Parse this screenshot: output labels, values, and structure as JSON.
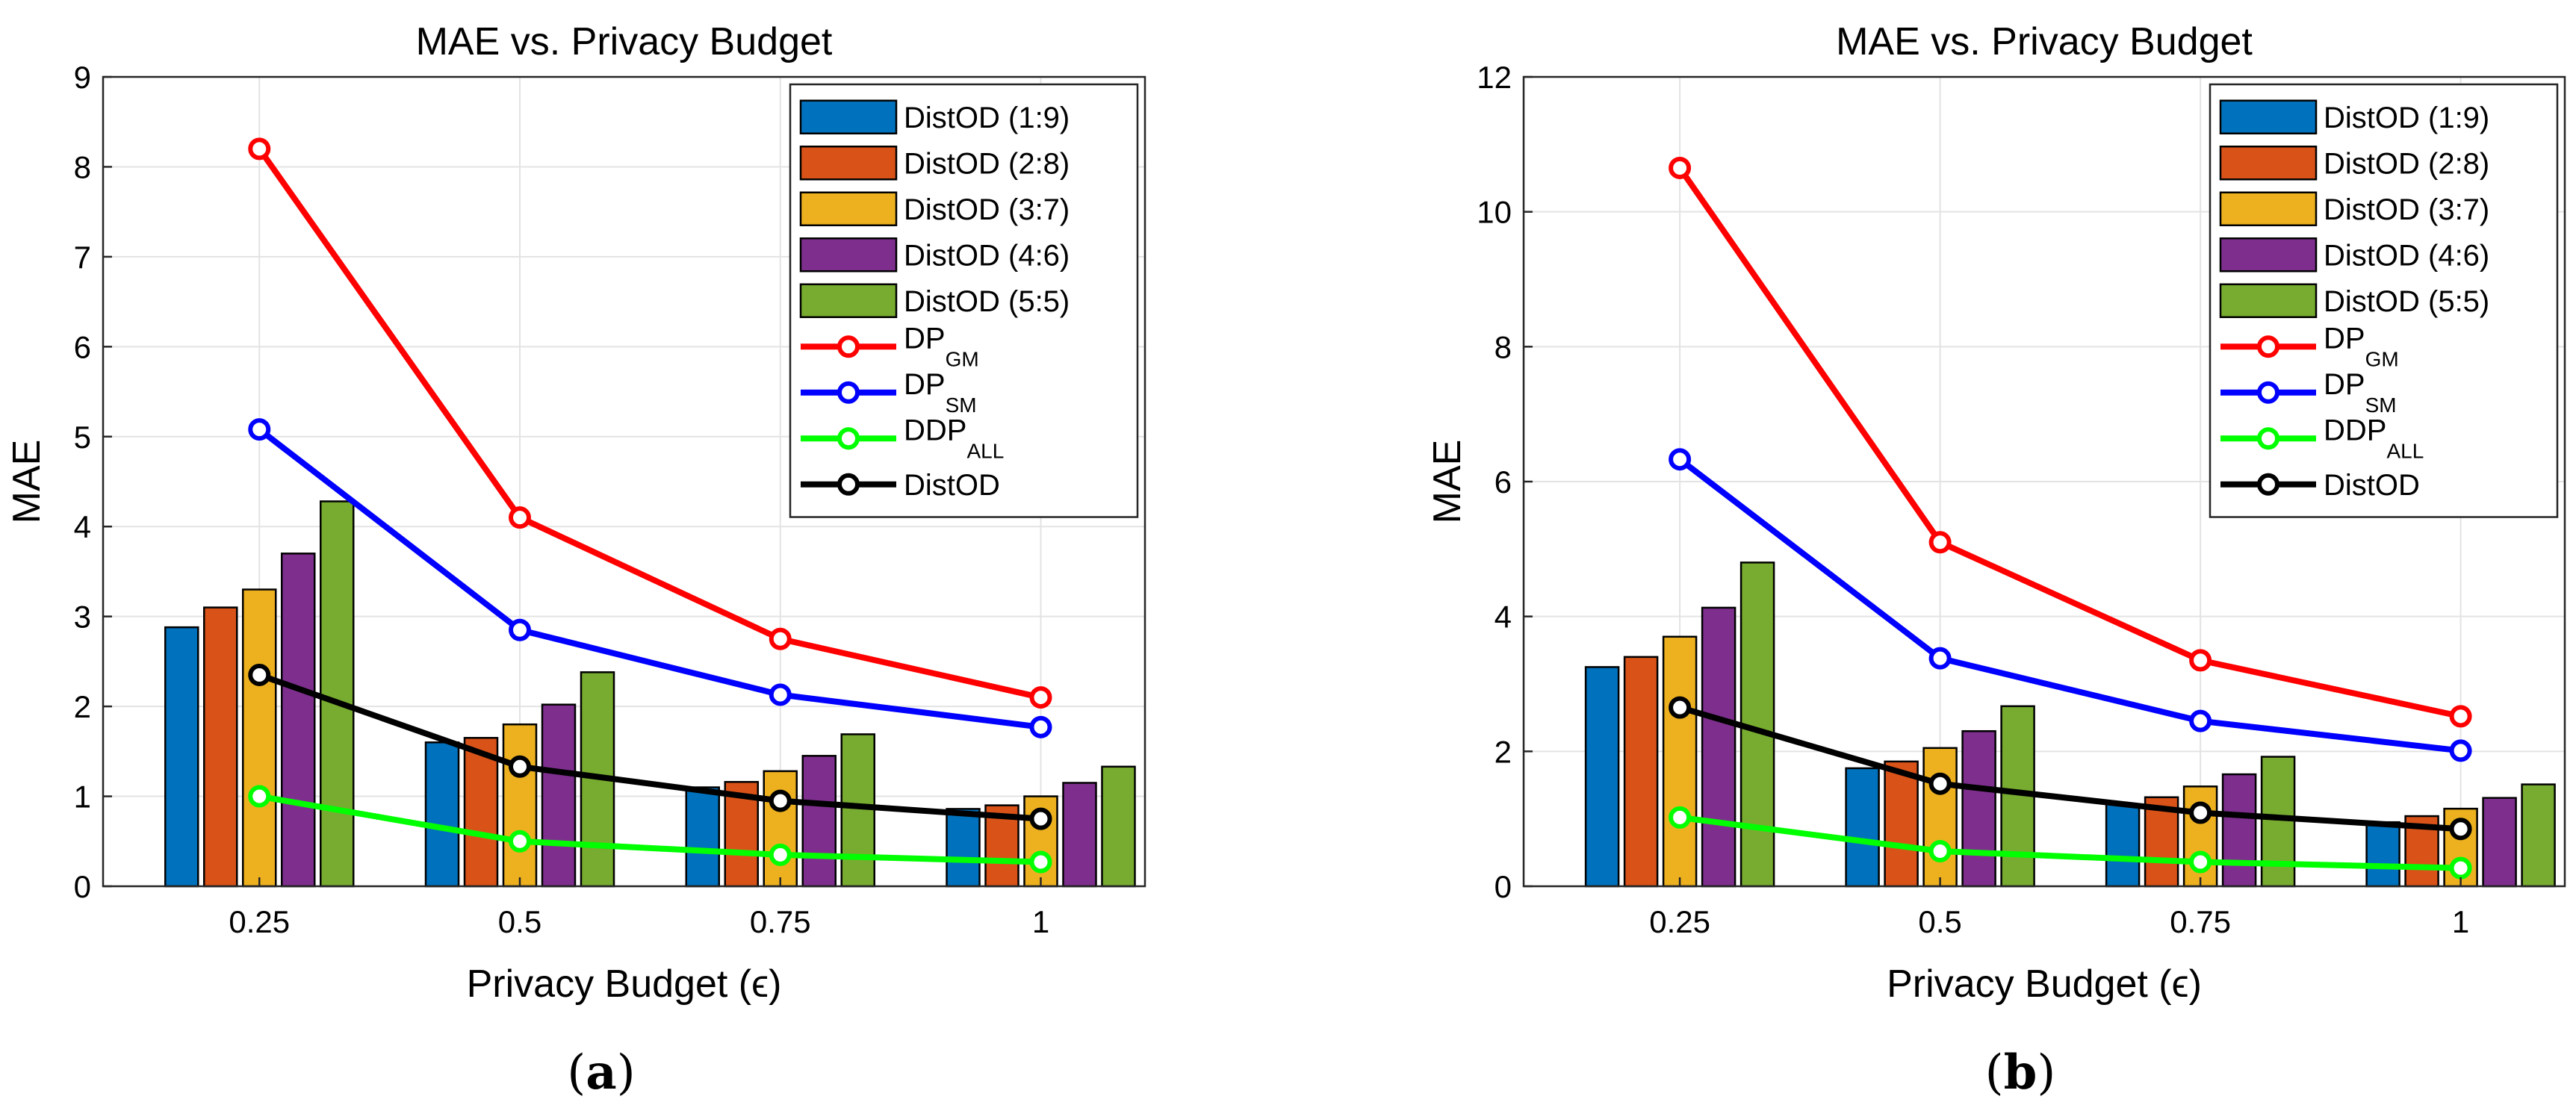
{
  "chart_data": [
    {
      "type": "bar",
      "title": "MAE vs. Privacy Budget",
      "xlabel": "Privacy Budget (ϵ)",
      "ylabel": "MAE",
      "caption_letter": "a",
      "categories": [
        "0.25",
        "0.5",
        "0.75",
        "1"
      ],
      "x": [
        0.25,
        0.5,
        0.75,
        1
      ],
      "xlim": [
        0.1,
        1.1
      ],
      "ylim": [
        0,
        9
      ],
      "yticks": [
        "0",
        "1",
        "2",
        "3",
        "4",
        "5",
        "6",
        "7",
        "8",
        "9"
      ],
      "grid": true,
      "legend_position": "top-right",
      "bar_series": [
        {
          "name": "DistOD (1:9)",
          "color": "#0072BD",
          "values": [
            2.88,
            1.6,
            1.1,
            0.86
          ]
        },
        {
          "name": "DistOD (2:8)",
          "color": "#D95319",
          "values": [
            3.1,
            1.65,
            1.16,
            0.9
          ]
        },
        {
          "name": "DistOD (3:7)",
          "color": "#EDB120",
          "values": [
            3.3,
            1.8,
            1.28,
            1.0
          ]
        },
        {
          "name": "DistOD (4:6)",
          "color": "#7E2F8E",
          "values": [
            3.7,
            2.02,
            1.45,
            1.15
          ]
        },
        {
          "name": "DistOD (5:5)",
          "color": "#77AC30",
          "values": [
            4.28,
            2.38,
            1.69,
            1.33
          ]
        }
      ],
      "line_series": [
        {
          "name": "DP",
          "subscript": "GM",
          "color": "#FF0000",
          "values": [
            8.2,
            4.1,
            2.75,
            2.1
          ]
        },
        {
          "name": "DP",
          "subscript": "SM",
          "color": "#0000FF",
          "values": [
            5.08,
            2.85,
            2.13,
            1.77
          ]
        },
        {
          "name": "DDP",
          "subscript": "ALL",
          "color": "#00FF00",
          "values": [
            1.0,
            0.5,
            0.35,
            0.27
          ]
        },
        {
          "name": "DistOD",
          "subscript": "",
          "color": "#000000",
          "values": [
            2.35,
            1.33,
            0.95,
            0.75
          ]
        }
      ]
    },
    {
      "type": "bar",
      "title": "MAE vs. Privacy Budget",
      "xlabel": "Privacy Budget (ϵ)",
      "ylabel": "MAE",
      "caption_letter": "b",
      "categories": [
        "0.25",
        "0.5",
        "0.75",
        "1"
      ],
      "x": [
        0.25,
        0.5,
        0.75,
        1
      ],
      "xlim": [
        0.1,
        1.1
      ],
      "ylim": [
        0,
        12
      ],
      "yticks": [
        "0",
        "2",
        "4",
        "6",
        "8",
        "10",
        "12"
      ],
      "grid": true,
      "legend_position": "top-right",
      "bar_series": [
        {
          "name": "DistOD (1:9)",
          "color": "#0072BD",
          "values": [
            3.25,
            1.75,
            1.22,
            0.95
          ]
        },
        {
          "name": "DistOD (2:8)",
          "color": "#D95319",
          "values": [
            3.4,
            1.85,
            1.32,
            1.04
          ]
        },
        {
          "name": "DistOD (3:7)",
          "color": "#EDB120",
          "values": [
            3.7,
            2.05,
            1.48,
            1.15
          ]
        },
        {
          "name": "DistOD (4:6)",
          "color": "#7E2F8E",
          "values": [
            4.13,
            2.3,
            1.66,
            1.31
          ]
        },
        {
          "name": "DistOD (5:5)",
          "color": "#77AC30",
          "values": [
            4.8,
            2.67,
            1.92,
            1.51
          ]
        }
      ],
      "line_series": [
        {
          "name": "DP",
          "subscript": "GM",
          "color": "#FF0000",
          "values": [
            10.65,
            5.1,
            3.35,
            2.52
          ]
        },
        {
          "name": "DP",
          "subscript": "SM",
          "color": "#0000FF",
          "values": [
            6.33,
            3.38,
            2.45,
            2.01
          ]
        },
        {
          "name": "DDP",
          "subscript": "ALL",
          "color": "#00FF00",
          "values": [
            1.02,
            0.52,
            0.36,
            0.27
          ]
        },
        {
          "name": "DistOD",
          "subscript": "",
          "color": "#000000",
          "values": [
            2.65,
            1.52,
            1.09,
            0.85
          ]
        }
      ]
    }
  ]
}
